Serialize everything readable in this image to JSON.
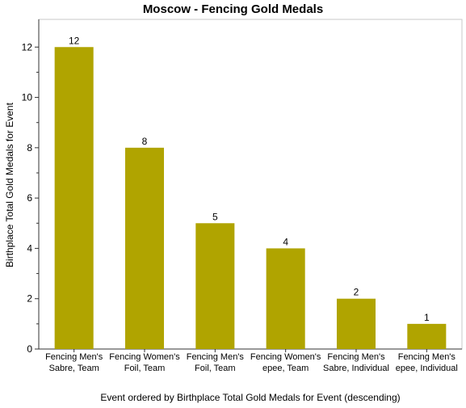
{
  "chart_data": {
    "type": "bar",
    "title": "Moscow - Fencing Gold Medals",
    "xlabel": "Event ordered by Birthplace Total Gold Medals for Event (descending)",
    "ylabel": "Birthplace Total Gold Medals for Event",
    "categories": [
      [
        "Fencing Men's",
        "Sabre, Team"
      ],
      [
        "Fencing Women's",
        "Foil, Team"
      ],
      [
        "Fencing Men's",
        "Foil, Team"
      ],
      [
        "Fencing Women's",
        "epee, Team"
      ],
      [
        "Fencing Men's",
        "Sabre, Individual"
      ],
      [
        "Fencing Men's",
        "epee, Individual"
      ]
    ],
    "values": [
      12,
      8,
      5,
      4,
      2,
      1
    ],
    "data_labels": [
      "12",
      "8",
      "5",
      "4",
      "2",
      "1"
    ],
    "ylim": [
      0,
      13.1
    ],
    "yticks": [
      0,
      2,
      4,
      6,
      8,
      10,
      12
    ],
    "grid": false,
    "legend": "none",
    "bar_color": "#b0a400"
  }
}
